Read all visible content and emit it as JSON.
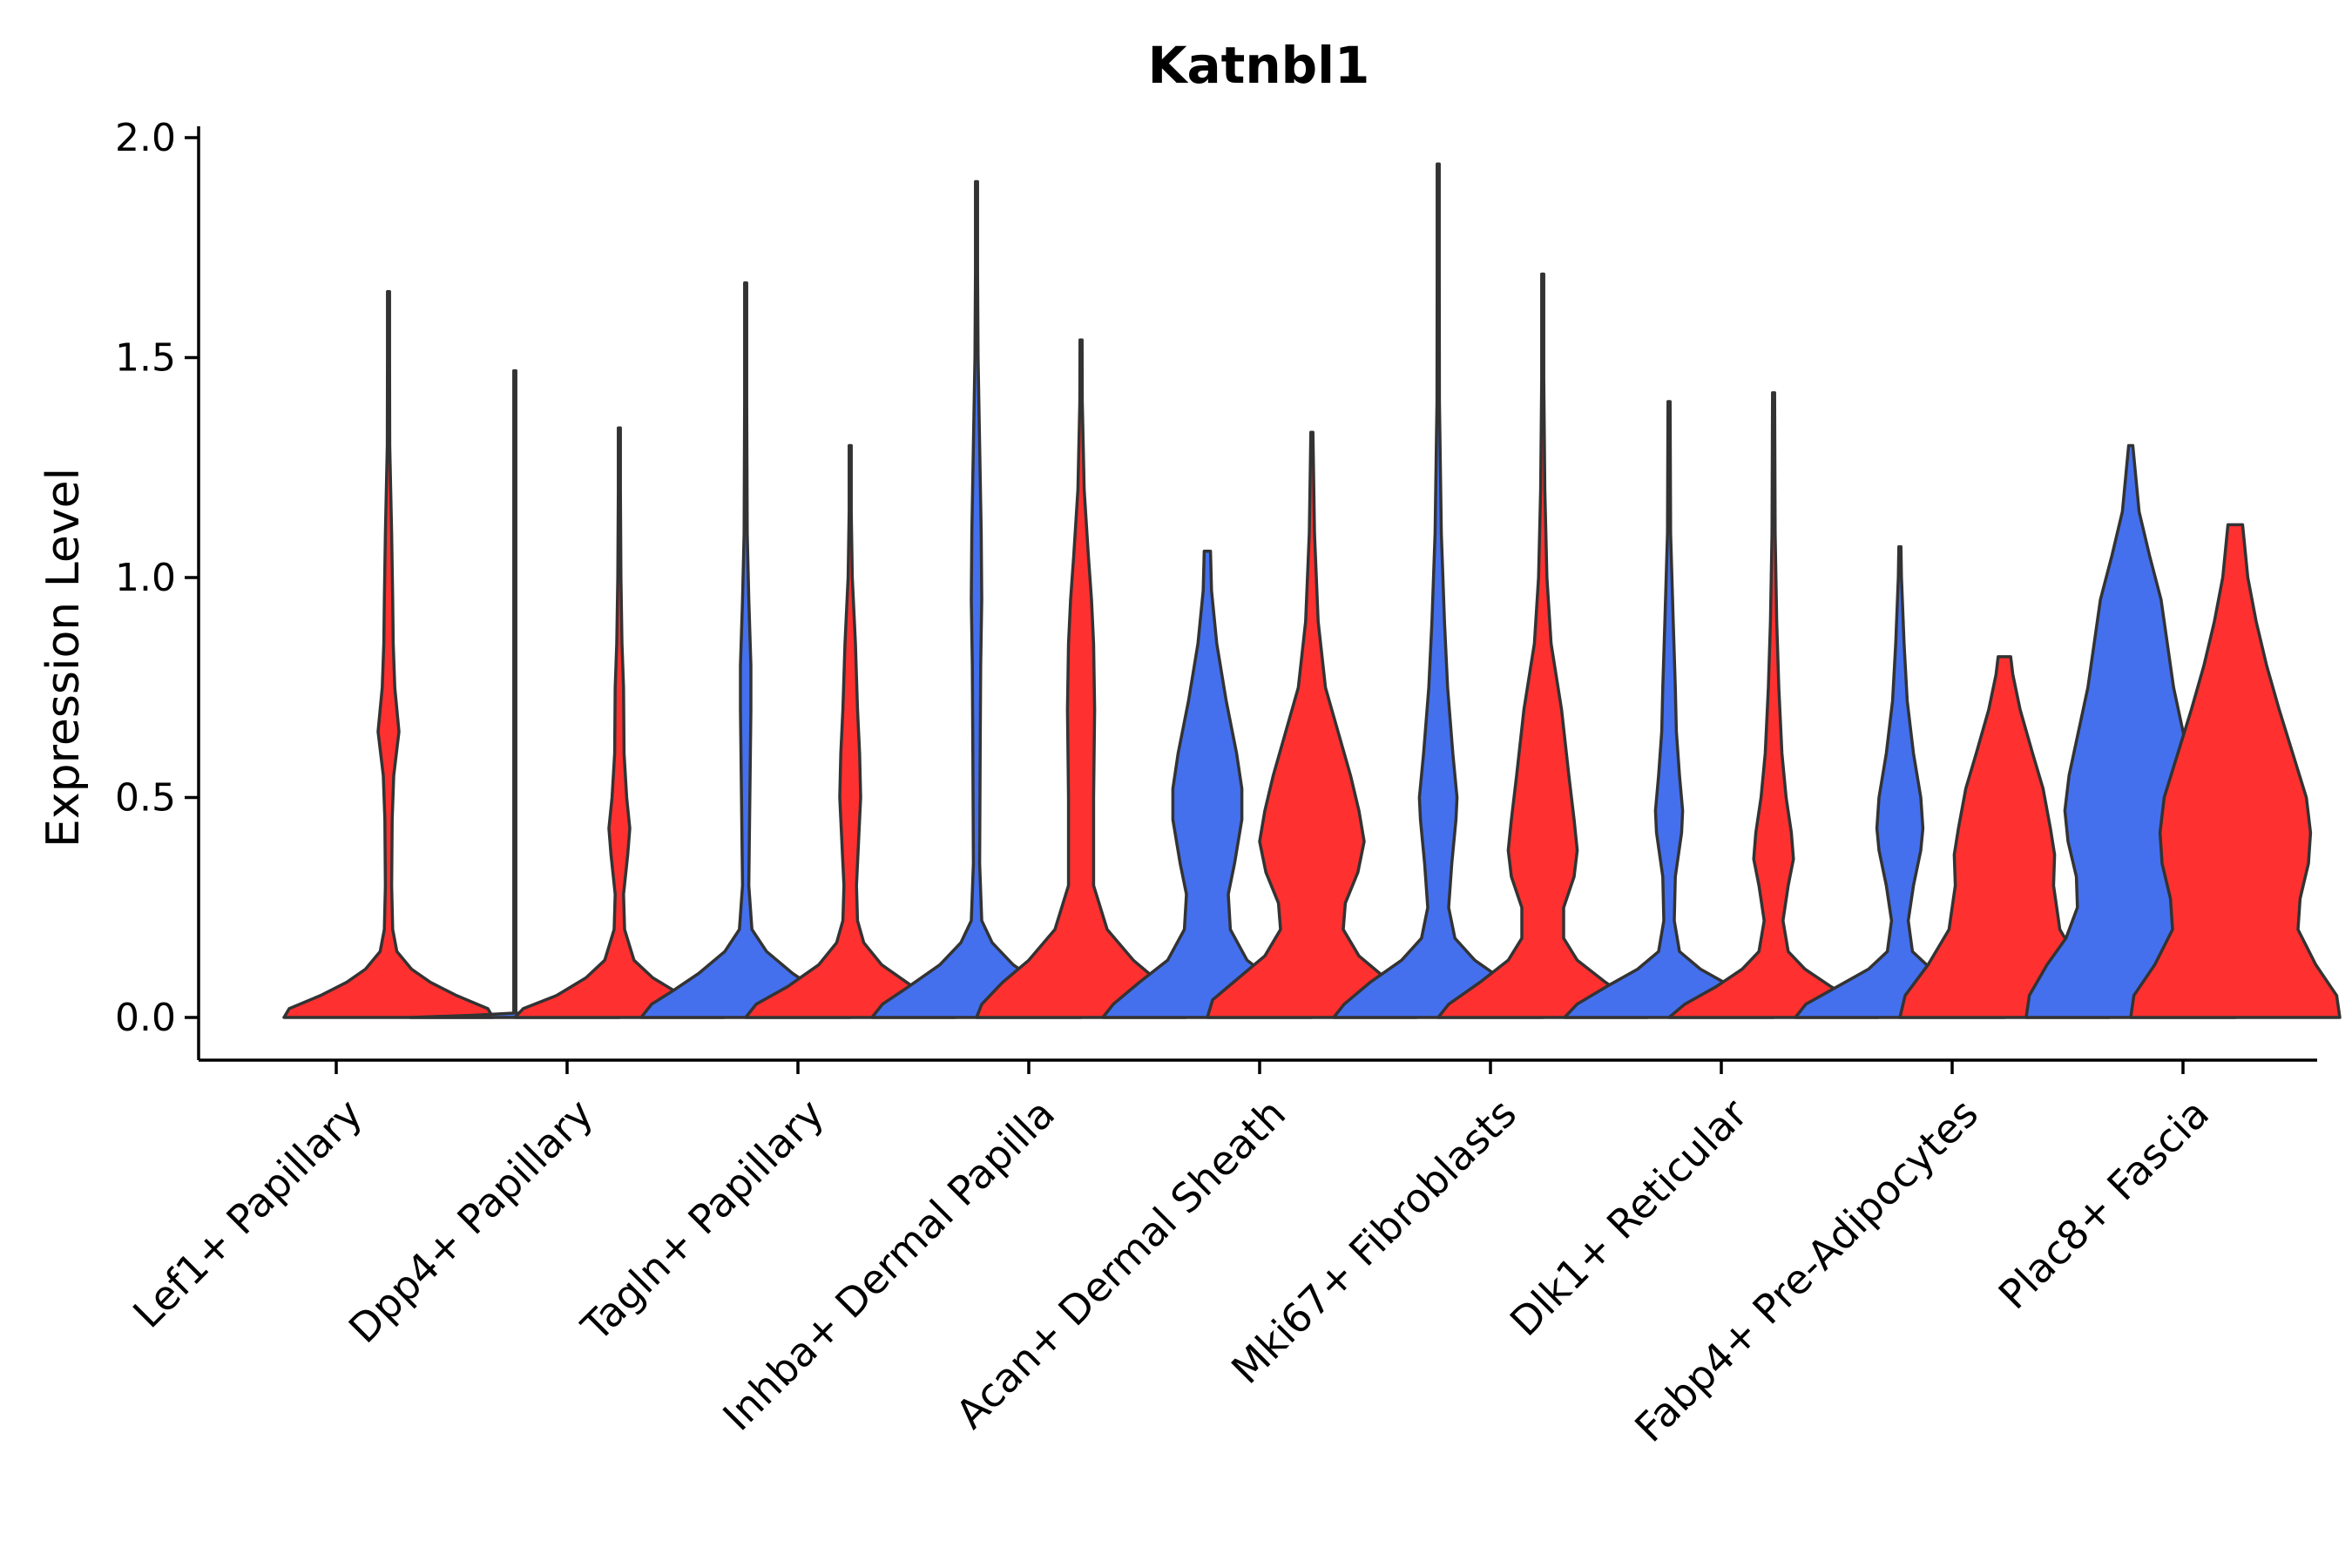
{
  "chart_data": {
    "type": "violin",
    "title": "Katnbl1",
    "xlabel": "",
    "ylabel": "Expression Level",
    "ylim": [
      -0.1,
      2.05
    ],
    "yticks": [
      "0.0",
      "0.5",
      "1.0",
      "1.5",
      "2.0"
    ],
    "grid": false,
    "legend": "none",
    "series_colors": [
      "#4470EE",
      "#FF3030"
    ],
    "categories": [
      "Lef1+ Papillary",
      "Dpp4+ Papillary",
      "Tagln+ Papillary",
      "Inhba+ Dermal Papilla",
      "Acan+ Dermal Sheath",
      "Mki67+ Fibroblasts",
      "Dlk1+ Reticular",
      "Fabp4+ Pre-Adipocytes",
      "Plac8+ Fascia"
    ],
    "violins": [
      {
        "category": "Lef1+ Papillary",
        "group": 1,
        "max": 1.65,
        "profile": [
          [
            0,
            1.0
          ],
          [
            0.02,
            0.95
          ],
          [
            0.05,
            0.65
          ],
          [
            0.08,
            0.4
          ],
          [
            0.11,
            0.22
          ],
          [
            0.15,
            0.08
          ],
          [
            0.2,
            0.04
          ],
          [
            0.3,
            0.03
          ],
          [
            0.45,
            0.035
          ],
          [
            0.55,
            0.05
          ],
          [
            0.65,
            0.1
          ],
          [
            0.75,
            0.06
          ],
          [
            0.85,
            0.045
          ],
          [
            0.95,
            0.04
          ],
          [
            1.1,
            0.03
          ],
          [
            1.3,
            0.012
          ],
          [
            1.5,
            0.006
          ],
          [
            1.65,
            0.004
          ]
        ]
      },
      {
        "category": "Dpp4+ Papillary",
        "group": 0,
        "max": 1.47,
        "profile": [
          [
            0,
            1.0
          ],
          [
            0.005,
            0.4
          ],
          [
            0.01,
            0.004
          ],
          [
            1.47,
            0.004
          ]
        ]
      },
      {
        "category": "Dpp4+ Papillary",
        "group": 1,
        "max": 1.34,
        "profile": [
          [
            0,
            1.0
          ],
          [
            0.02,
            0.92
          ],
          [
            0.05,
            0.6
          ],
          [
            0.09,
            0.32
          ],
          [
            0.13,
            0.14
          ],
          [
            0.2,
            0.05
          ],
          [
            0.28,
            0.04
          ],
          [
            0.37,
            0.08
          ],
          [
            0.43,
            0.1
          ],
          [
            0.5,
            0.07
          ],
          [
            0.6,
            0.045
          ],
          [
            0.75,
            0.04
          ],
          [
            0.85,
            0.025
          ],
          [
            1.0,
            0.015
          ],
          [
            1.2,
            0.008
          ],
          [
            1.34,
            0.004
          ]
        ]
      },
      {
        "category": "Tagln+ Papillary",
        "group": 0,
        "max": 1.67,
        "profile": [
          [
            0,
            1.0
          ],
          [
            0.03,
            0.9
          ],
          [
            0.06,
            0.7
          ],
          [
            0.1,
            0.45
          ],
          [
            0.15,
            0.2
          ],
          [
            0.2,
            0.06
          ],
          [
            0.3,
            0.03
          ],
          [
            0.5,
            0.04
          ],
          [
            0.7,
            0.05
          ],
          [
            0.8,
            0.05
          ],
          [
            0.95,
            0.03
          ],
          [
            1.1,
            0.015
          ],
          [
            1.4,
            0.006
          ],
          [
            1.67,
            0.003
          ]
        ]
      },
      {
        "category": "Tagln+ Papillary",
        "group": 1,
        "max": 1.3,
        "profile": [
          [
            0,
            1.0
          ],
          [
            0.03,
            0.9
          ],
          [
            0.07,
            0.6
          ],
          [
            0.12,
            0.3
          ],
          [
            0.17,
            0.13
          ],
          [
            0.22,
            0.07
          ],
          [
            0.3,
            0.06
          ],
          [
            0.4,
            0.08
          ],
          [
            0.5,
            0.1
          ],
          [
            0.6,
            0.09
          ],
          [
            0.7,
            0.07
          ],
          [
            0.85,
            0.05
          ],
          [
            1.0,
            0.02
          ],
          [
            1.15,
            0.01
          ],
          [
            1.3,
            0.004
          ]
        ]
      },
      {
        "category": "Inhba+ Dermal Papilla",
        "group": 0,
        "max": 1.9,
        "profile": [
          [
            0,
            1.0
          ],
          [
            0.03,
            0.9
          ],
          [
            0.07,
            0.65
          ],
          [
            0.12,
            0.35
          ],
          [
            0.17,
            0.15
          ],
          [
            0.22,
            0.05
          ],
          [
            0.35,
            0.03
          ],
          [
            0.6,
            0.035
          ],
          [
            0.8,
            0.04
          ],
          [
            0.95,
            0.05
          ],
          [
            1.1,
            0.045
          ],
          [
            1.3,
            0.03
          ],
          [
            1.5,
            0.015
          ],
          [
            1.7,
            0.007
          ],
          [
            1.9,
            0.003
          ]
        ]
      },
      {
        "category": "Inhba+ Dermal Papilla",
        "group": 1,
        "max": 1.54,
        "profile": [
          [
            0,
            1.0
          ],
          [
            0.03,
            0.95
          ],
          [
            0.08,
            0.75
          ],
          [
            0.13,
            0.5
          ],
          [
            0.2,
            0.25
          ],
          [
            0.3,
            0.12
          ],
          [
            0.5,
            0.12
          ],
          [
            0.7,
            0.13
          ],
          [
            0.85,
            0.12
          ],
          [
            0.95,
            0.1
          ],
          [
            1.05,
            0.07
          ],
          [
            1.2,
            0.03
          ],
          [
            1.4,
            0.012
          ],
          [
            1.54,
            0.004
          ]
        ]
      },
      {
        "category": "Acan+ Dermal Sheath",
        "group": 0,
        "max": 1.06,
        "profile": [
          [
            0,
            1.0
          ],
          [
            0.03,
            0.9
          ],
          [
            0.08,
            0.65
          ],
          [
            0.13,
            0.38
          ],
          [
            0.2,
            0.22
          ],
          [
            0.28,
            0.2
          ],
          [
            0.35,
            0.26
          ],
          [
            0.45,
            0.33
          ],
          [
            0.52,
            0.33
          ],
          [
            0.6,
            0.28
          ],
          [
            0.72,
            0.18
          ],
          [
            0.85,
            0.09
          ],
          [
            0.97,
            0.04
          ],
          [
            1.06,
            0.03
          ]
        ]
      },
      {
        "category": "Acan+ Dermal Sheath",
        "group": 1,
        "max": 1.33,
        "profile": [
          [
            0,
            1.0
          ],
          [
            0.04,
            0.95
          ],
          [
            0.09,
            0.7
          ],
          [
            0.14,
            0.45
          ],
          [
            0.2,
            0.3
          ],
          [
            0.26,
            0.32
          ],
          [
            0.33,
            0.44
          ],
          [
            0.4,
            0.5
          ],
          [
            0.47,
            0.45
          ],
          [
            0.55,
            0.37
          ],
          [
            0.65,
            0.25
          ],
          [
            0.75,
            0.13
          ],
          [
            0.9,
            0.06
          ],
          [
            1.1,
            0.025
          ],
          [
            1.33,
            0.005
          ]
        ]
      },
      {
        "category": "Mki67+ Fibroblasts",
        "group": 0,
        "max": 1.94,
        "profile": [
          [
            0,
            1.0
          ],
          [
            0.03,
            0.9
          ],
          [
            0.08,
            0.65
          ],
          [
            0.13,
            0.35
          ],
          [
            0.18,
            0.16
          ],
          [
            0.25,
            0.1
          ],
          [
            0.35,
            0.13
          ],
          [
            0.45,
            0.17
          ],
          [
            0.5,
            0.18
          ],
          [
            0.6,
            0.14
          ],
          [
            0.75,
            0.09
          ],
          [
            0.9,
            0.06
          ],
          [
            1.1,
            0.03
          ],
          [
            1.4,
            0.012
          ],
          [
            1.7,
            0.006
          ],
          [
            1.94,
            0.002
          ]
        ]
      },
      {
        "category": "Mki67+ Fibroblasts",
        "group": 1,
        "max": 1.69,
        "profile": [
          [
            0,
            1.0
          ],
          [
            0.03,
            0.9
          ],
          [
            0.08,
            0.6
          ],
          [
            0.13,
            0.33
          ],
          [
            0.18,
            0.2
          ],
          [
            0.25,
            0.2
          ],
          [
            0.32,
            0.3
          ],
          [
            0.38,
            0.33
          ],
          [
            0.45,
            0.3
          ],
          [
            0.55,
            0.25
          ],
          [
            0.7,
            0.18
          ],
          [
            0.85,
            0.08
          ],
          [
            1.0,
            0.04
          ],
          [
            1.2,
            0.02
          ],
          [
            1.45,
            0.01
          ],
          [
            1.69,
            0.004
          ]
        ]
      },
      {
        "category": "Dlk1+ Reticular",
        "group": 0,
        "max": 1.4,
        "profile": [
          [
            0,
            1.0
          ],
          [
            0.03,
            0.88
          ],
          [
            0.07,
            0.6
          ],
          [
            0.11,
            0.3
          ],
          [
            0.15,
            0.1
          ],
          [
            0.22,
            0.05
          ],
          [
            0.32,
            0.06
          ],
          [
            0.42,
            0.12
          ],
          [
            0.47,
            0.13
          ],
          [
            0.55,
            0.1
          ],
          [
            0.65,
            0.07
          ],
          [
            0.75,
            0.06
          ],
          [
            0.9,
            0.04
          ],
          [
            1.1,
            0.015
          ],
          [
            1.4,
            0.004
          ]
        ]
      },
      {
        "category": "Dlk1+ Reticular",
        "group": 1,
        "max": 1.42,
        "profile": [
          [
            0,
            1.0
          ],
          [
            0.03,
            0.85
          ],
          [
            0.07,
            0.55
          ],
          [
            0.11,
            0.3
          ],
          [
            0.15,
            0.14
          ],
          [
            0.22,
            0.09
          ],
          [
            0.3,
            0.14
          ],
          [
            0.36,
            0.19
          ],
          [
            0.42,
            0.17
          ],
          [
            0.5,
            0.12
          ],
          [
            0.6,
            0.08
          ],
          [
            0.75,
            0.05
          ],
          [
            0.9,
            0.03
          ],
          [
            1.1,
            0.015
          ],
          [
            1.42,
            0.004
          ]
        ]
      },
      {
        "category": "Fabp4+ Pre-Adipocytes",
        "group": 0,
        "max": 1.07,
        "profile": [
          [
            0,
            1.0
          ],
          [
            0.03,
            0.9
          ],
          [
            0.07,
            0.6
          ],
          [
            0.11,
            0.3
          ],
          [
            0.15,
            0.12
          ],
          [
            0.22,
            0.08
          ],
          [
            0.3,
            0.13
          ],
          [
            0.38,
            0.2
          ],
          [
            0.43,
            0.22
          ],
          [
            0.5,
            0.2
          ],
          [
            0.6,
            0.13
          ],
          [
            0.72,
            0.07
          ],
          [
            0.85,
            0.04
          ],
          [
            1.0,
            0.015
          ],
          [
            1.07,
            0.01
          ]
        ]
      },
      {
        "category": "Fabp4+ Pre-Adipocytes",
        "group": 1,
        "max": 0.82,
        "profile": [
          [
            0,
            1.0
          ],
          [
            0.05,
            0.95
          ],
          [
            0.12,
            0.73
          ],
          [
            0.2,
            0.53
          ],
          [
            0.3,
            0.47
          ],
          [
            0.37,
            0.48
          ],
          [
            0.43,
            0.44
          ],
          [
            0.52,
            0.37
          ],
          [
            0.6,
            0.27
          ],
          [
            0.7,
            0.15
          ],
          [
            0.78,
            0.08
          ],
          [
            0.82,
            0.06
          ]
        ]
      },
      {
        "category": "Plac8+ Fascia",
        "group": 0,
        "max": 1.3,
        "profile": [
          [
            0,
            1.0
          ],
          [
            0.05,
            0.97
          ],
          [
            0.12,
            0.8
          ],
          [
            0.18,
            0.62
          ],
          [
            0.25,
            0.51
          ],
          [
            0.32,
            0.52
          ],
          [
            0.4,
            0.6
          ],
          [
            0.47,
            0.63
          ],
          [
            0.55,
            0.59
          ],
          [
            0.65,
            0.5
          ],
          [
            0.75,
            0.41
          ],
          [
            0.85,
            0.35
          ],
          [
            0.95,
            0.29
          ],
          [
            1.05,
            0.18
          ],
          [
            1.15,
            0.08
          ],
          [
            1.3,
            0.02
          ]
        ]
      },
      {
        "category": "Plac8+ Fascia",
        "group": 1,
        "max": 1.12,
        "profile": [
          [
            0,
            1.0
          ],
          [
            0.05,
            0.97
          ],
          [
            0.12,
            0.77
          ],
          [
            0.2,
            0.6
          ],
          [
            0.27,
            0.62
          ],
          [
            0.35,
            0.7
          ],
          [
            0.42,
            0.72
          ],
          [
            0.5,
            0.68
          ],
          [
            0.6,
            0.55
          ],
          [
            0.7,
            0.42
          ],
          [
            0.8,
            0.3
          ],
          [
            0.9,
            0.2
          ],
          [
            1.0,
            0.12
          ],
          [
            1.12,
            0.07
          ]
        ]
      }
    ]
  }
}
